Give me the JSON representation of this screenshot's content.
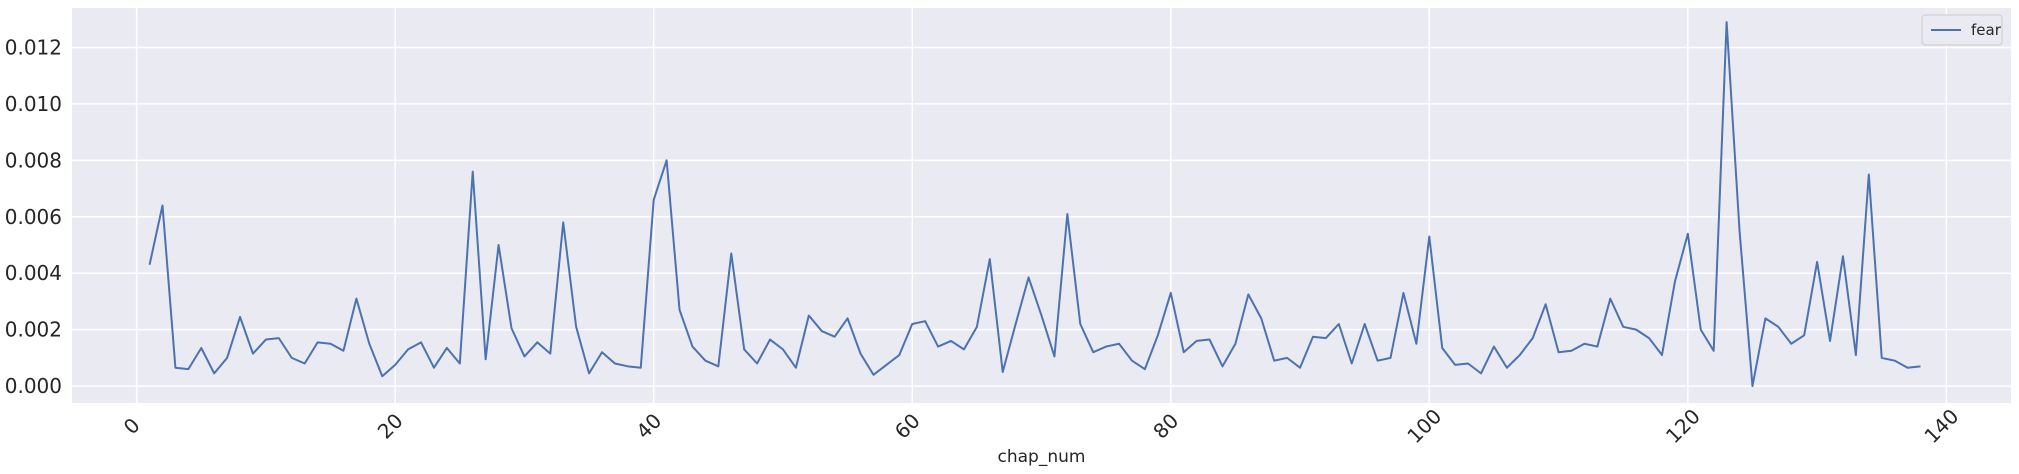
{
  "chart_data": {
    "type": "line",
    "title": "",
    "xlabel": "chap_num",
    "ylabel": "",
    "xlim": [
      -5,
      145
    ],
    "ylim": [
      -0.0006,
      0.0134
    ],
    "xticks": [
      0,
      20,
      40,
      60,
      80,
      100,
      120,
      140
    ],
    "yticks": [
      0.0,
      0.002,
      0.004,
      0.006,
      0.008,
      0.01,
      0.012
    ],
    "ytick_labels": [
      "0.000",
      "0.002",
      "0.004",
      "0.006",
      "0.008",
      "0.010",
      "0.012"
    ],
    "xtick_rotation": -45,
    "grid": true,
    "legend_position": "top-right",
    "series": [
      {
        "name": "fear",
        "color": "#4c72b0",
        "x": [
          1,
          2,
          3,
          4,
          5,
          6,
          7,
          8,
          9,
          10,
          11,
          12,
          13,
          14,
          15,
          16,
          17,
          18,
          19,
          20,
          21,
          22,
          23,
          24,
          25,
          26,
          27,
          28,
          29,
          30,
          31,
          32,
          33,
          34,
          35,
          36,
          37,
          38,
          39,
          40,
          41,
          42,
          43,
          44,
          45,
          46,
          47,
          48,
          49,
          50,
          51,
          52,
          53,
          54,
          55,
          56,
          57,
          58,
          59,
          60,
          61,
          62,
          63,
          64,
          65,
          66,
          67,
          68,
          69,
          70,
          71,
          72,
          73,
          74,
          75,
          76,
          77,
          78,
          79,
          80,
          81,
          82,
          83,
          84,
          85,
          86,
          87,
          88,
          89,
          90,
          91,
          92,
          93,
          94,
          95,
          96,
          97,
          98,
          99,
          100,
          101,
          102,
          103,
          104,
          105,
          106,
          107,
          108,
          109,
          110,
          111,
          112,
          113,
          114,
          115,
          116,
          117,
          118,
          119,
          120,
          121,
          122,
          123,
          124,
          125,
          126,
          127,
          128,
          129,
          130,
          131,
          132,
          133,
          134,
          135,
          136,
          137,
          138
        ],
        "values": [
          0.0043,
          0.0064,
          0.00065,
          0.0006,
          0.00135,
          0.00045,
          0.001,
          0.00245,
          0.00115,
          0.00165,
          0.0017,
          0.001,
          0.0008,
          0.00155,
          0.0015,
          0.00125,
          0.0031,
          0.0015,
          0.00035,
          0.00075,
          0.0013,
          0.00155,
          0.00065,
          0.00135,
          0.0008,
          0.0076,
          0.00095,
          0.005,
          0.00205,
          0.00105,
          0.00155,
          0.00115,
          0.0058,
          0.0021,
          0.00045,
          0.0012,
          0.0008,
          0.0007,
          0.00065,
          0.0066,
          0.008,
          0.0027,
          0.0014,
          0.0009,
          0.0007,
          0.0047,
          0.0013,
          0.0008,
          0.00165,
          0.0013,
          0.00065,
          0.0025,
          0.00195,
          0.00175,
          0.0024,
          0.00115,
          0.0004,
          0.00075,
          0.0011,
          0.0022,
          0.0023,
          0.0014,
          0.0016,
          0.0013,
          0.0021,
          0.0045,
          0.0005,
          0.0022,
          0.00385,
          0.0025,
          0.00105,
          0.0061,
          0.0022,
          0.0012,
          0.0014,
          0.0015,
          0.0009,
          0.0006,
          0.0018,
          0.0033,
          0.0012,
          0.0016,
          0.00165,
          0.0007,
          0.0015,
          0.00325,
          0.0024,
          0.0009,
          0.001,
          0.00065,
          0.00175,
          0.0017,
          0.0022,
          0.0008,
          0.0022,
          0.0009,
          0.001,
          0.0033,
          0.0015,
          0.0053,
          0.00135,
          0.00075,
          0.0008,
          0.00045,
          0.0014,
          0.00065,
          0.0011,
          0.0017,
          0.0029,
          0.0012,
          0.00125,
          0.0015,
          0.0014,
          0.0031,
          0.0021,
          0.002,
          0.0017,
          0.0011,
          0.0037,
          0.0054,
          0.002,
          0.00125,
          0.0129,
          0.0055,
          0.0,
          0.0024,
          0.0021,
          0.0015,
          0.0018,
          0.0044,
          0.0016,
          0.0046,
          0.0011,
          0.0075,
          0.001,
          0.0009,
          0.00065,
          0.0007
        ]
      }
    ]
  }
}
